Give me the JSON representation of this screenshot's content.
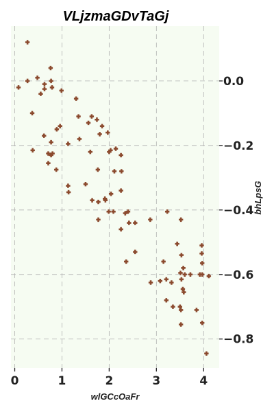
{
  "chart_data": {
    "type": "scatter",
    "title": "VLjzmaGDvTaGj",
    "xlabel": "wlGCcOaFr",
    "ylabel": "bhLpsG",
    "xlim": [
      -0.08,
      4.33
    ],
    "ylim": [
      -0.89,
      0.17
    ],
    "xticks": [
      0,
      1,
      2,
      3,
      4
    ],
    "xtick_labels": [
      "0",
      "1",
      "2",
      "3",
      "4"
    ],
    "yticks": [
      0.0,
      -0.2,
      -0.4,
      -0.6,
      -0.8
    ],
    "ytick_labels": [
      "0.0",
      "−0.2",
      "−0.4",
      "−0.6",
      "−0.8"
    ],
    "y_axis_side": "right",
    "grid": true,
    "background_color": "#f6fcf2",
    "marker_color": "#8b4a2e",
    "points": [
      [
        0.27,
        0.12
      ],
      [
        0.08,
        -0.02
      ],
      [
        0.27,
        0.0
      ],
      [
        0.48,
        0.01
      ],
      [
        0.63,
        -0.01
      ],
      [
        0.55,
        -0.04
      ],
      [
        0.63,
        -0.025
      ],
      [
        0.76,
        0.04
      ],
      [
        0.77,
        0.0
      ],
      [
        0.79,
        -0.02
      ],
      [
        0.99,
        -0.03
      ],
      [
        1.3,
        -0.055
      ],
      [
        0.37,
        -0.1
      ],
      [
        0.62,
        -0.17
      ],
      [
        0.38,
        -0.215
      ],
      [
        0.77,
        -0.19
      ],
      [
        0.89,
        -0.15
      ],
      [
        0.96,
        -0.14
      ],
      [
        0.71,
        -0.225
      ],
      [
        0.77,
        -0.23
      ],
      [
        0.8,
        -0.225
      ],
      [
        0.71,
        -0.255
      ],
      [
        0.88,
        -0.275
      ],
      [
        1.13,
        -0.195
      ],
      [
        1.35,
        -0.11
      ],
      [
        1.37,
        -0.18
      ],
      [
        1.56,
        -0.13
      ],
      [
        1.63,
        -0.11
      ],
      [
        1.74,
        -0.12
      ],
      [
        1.8,
        -0.165
      ],
      [
        1.85,
        -0.14
      ],
      [
        1.97,
        -0.16
      ],
      [
        2.0,
        -0.22
      ],
      [
        2.03,
        -0.215
      ],
      [
        2.14,
        -0.21
      ],
      [
        2.25,
        -0.23
      ],
      [
        1.6,
        -0.22
      ],
      [
        1.76,
        -0.275
      ],
      [
        1.13,
        -0.325
      ],
      [
        1.14,
        -0.345
      ],
      [
        1.5,
        -0.32
      ],
      [
        1.64,
        -0.37
      ],
      [
        1.77,
        -0.375
      ],
      [
        1.91,
        -0.365
      ],
      [
        1.92,
        -0.37
      ],
      [
        2.04,
        -0.35
      ],
      [
        2.11,
        -0.28
      ],
      [
        2.25,
        -0.34
      ],
      [
        2.26,
        -0.28
      ],
      [
        1.77,
        -0.43
      ],
      [
        1.99,
        -0.405
      ],
      [
        2.09,
        -0.405
      ],
      [
        2.34,
        -0.41
      ],
      [
        2.4,
        -0.405
      ],
      [
        2.42,
        -0.44
      ],
      [
        2.55,
        -0.44
      ],
      [
        2.25,
        -0.46
      ],
      [
        2.55,
        -0.53
      ],
      [
        2.36,
        -0.56
      ],
      [
        2.87,
        -0.43
      ],
      [
        3.23,
        -0.405
      ],
      [
        3.52,
        -0.43
      ],
      [
        3.44,
        -0.505
      ],
      [
        3.53,
        -0.54
      ],
      [
        3.15,
        -0.56
      ],
      [
        3.57,
        -0.58
      ],
      [
        2.88,
        -0.625
      ],
      [
        3.08,
        -0.62
      ],
      [
        3.21,
        -0.615
      ],
      [
        3.32,
        -0.625
      ],
      [
        3.51,
        -0.595
      ],
      [
        3.53,
        -0.615
      ],
      [
        3.6,
        -0.6
      ],
      [
        3.72,
        -0.6
      ],
      [
        3.92,
        -0.6
      ],
      [
        3.97,
        -0.6
      ],
      [
        4.11,
        -0.605
      ],
      [
        3.96,
        -0.51
      ],
      [
        3.96,
        -0.535
      ],
      [
        3.97,
        -0.565
      ],
      [
        3.56,
        -0.645
      ],
      [
        3.58,
        -0.655
      ],
      [
        3.21,
        -0.68
      ],
      [
        3.35,
        -0.7
      ],
      [
        3.5,
        -0.7
      ],
      [
        3.52,
        -0.71
      ],
      [
        3.85,
        -0.71
      ],
      [
        3.97,
        -0.75
      ],
      [
        3.52,
        -0.755
      ],
      [
        4.06,
        -0.845
      ]
    ]
  }
}
